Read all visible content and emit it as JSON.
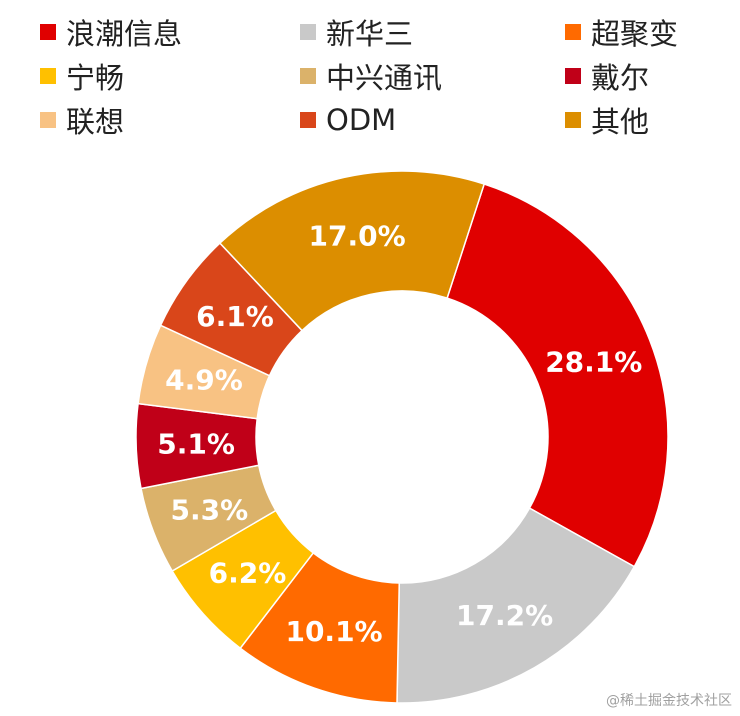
{
  "chart_data": {
    "type": "pie",
    "donut": true,
    "legend_position": "top",
    "series": [
      {
        "name": "浪潮信息",
        "value": 28.1,
        "label": "28.1%",
        "color": "#E00000"
      },
      {
        "name": "新华三",
        "value": 17.2,
        "label": "17.2%",
        "color": "#C9C9C9"
      },
      {
        "name": "超聚变",
        "value": 10.1,
        "label": "10.1%",
        "color": "#FF6A00"
      },
      {
        "name": "宁畅",
        "value": 6.2,
        "label": "6.2%",
        "color": "#FFC000"
      },
      {
        "name": "中兴通讯",
        "value": 5.3,
        "label": "5.3%",
        "color": "#DBB26A"
      },
      {
        "name": "戴尔",
        "value": 5.1,
        "label": "5.1%",
        "color": "#C00018"
      },
      {
        "name": "联想",
        "value": 4.9,
        "label": "4.9%",
        "color": "#F8C283"
      },
      {
        "name": "ODM",
        "value": 6.1,
        "label": "6.1%",
        "color": "#D9461A"
      },
      {
        "name": "其他",
        "value": 17.0,
        "label": "17.0%",
        "color": "#DC8E00"
      }
    ]
  },
  "watermark": "@稀土掘金技术社区"
}
